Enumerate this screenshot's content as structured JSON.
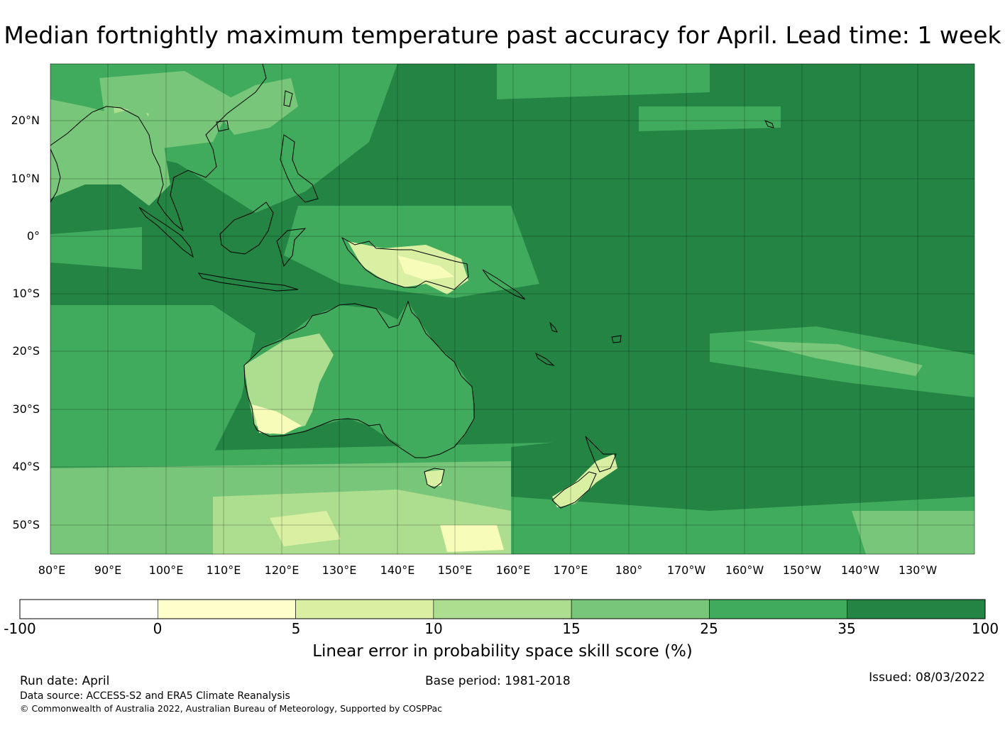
{
  "title": "Median fortnightly maximum temperature past accuracy for April. Lead time: 1 week",
  "map": {
    "lat_labels": [
      "20°N",
      "10°N",
      "0°",
      "10°S",
      "20°S",
      "30°S",
      "40°S",
      "50°S"
    ],
    "lon_labels": [
      "80°E",
      "90°E",
      "100°E",
      "110°E",
      "120°E",
      "130°E",
      "140°E",
      "150°E",
      "160°E",
      "170°E",
      "180°",
      "170°W",
      "160°W",
      "150°W",
      "140°W",
      "130°W"
    ],
    "ocean_color": "#238443",
    "regions": [
      {
        "name": "Australia",
        "skill_class": "5-35",
        "color": "#41ab5d"
      },
      {
        "name": "Western Australia interior",
        "skill_class": "10-15",
        "color": "#addd8e"
      },
      {
        "name": "South-west Australia",
        "skill_class": "0-5",
        "color": "#f7fcb9"
      },
      {
        "name": "New Guinea",
        "skill_class": "5-10",
        "color": "#d9f0a3"
      },
      {
        "name": "New Zealand",
        "skill_class": "5-15",
        "color": "#d9f0a3"
      },
      {
        "name": "Southern Indian Ocean",
        "skill_class": "0-25",
        "color": "#78c679"
      },
      {
        "name": "Central Pacific",
        "skill_class": "35-100",
        "color": "#238443"
      }
    ]
  },
  "colorbar": {
    "boundaries": [
      "-100",
      "0",
      "5",
      "10",
      "15",
      "25",
      "35",
      "100"
    ],
    "colors": [
      "#ffffff",
      "#ffffcc",
      "#d9f0a3",
      "#addd8e",
      "#78c679",
      "#41ab5d",
      "#238443"
    ],
    "label": "Linear error in probability space skill score (%)"
  },
  "footer": {
    "run_date": "Run date: April",
    "base_period": "Base period: 1981-2018",
    "issued": "Issued: 08/03/2022",
    "data_source": "Data source: ACCESS-S2 and ERA5 Climate Reanalysis",
    "copyright": "© Commonwealth of Australia 2022, Australian Bureau of Meteorology, Supported by COSPPac"
  }
}
